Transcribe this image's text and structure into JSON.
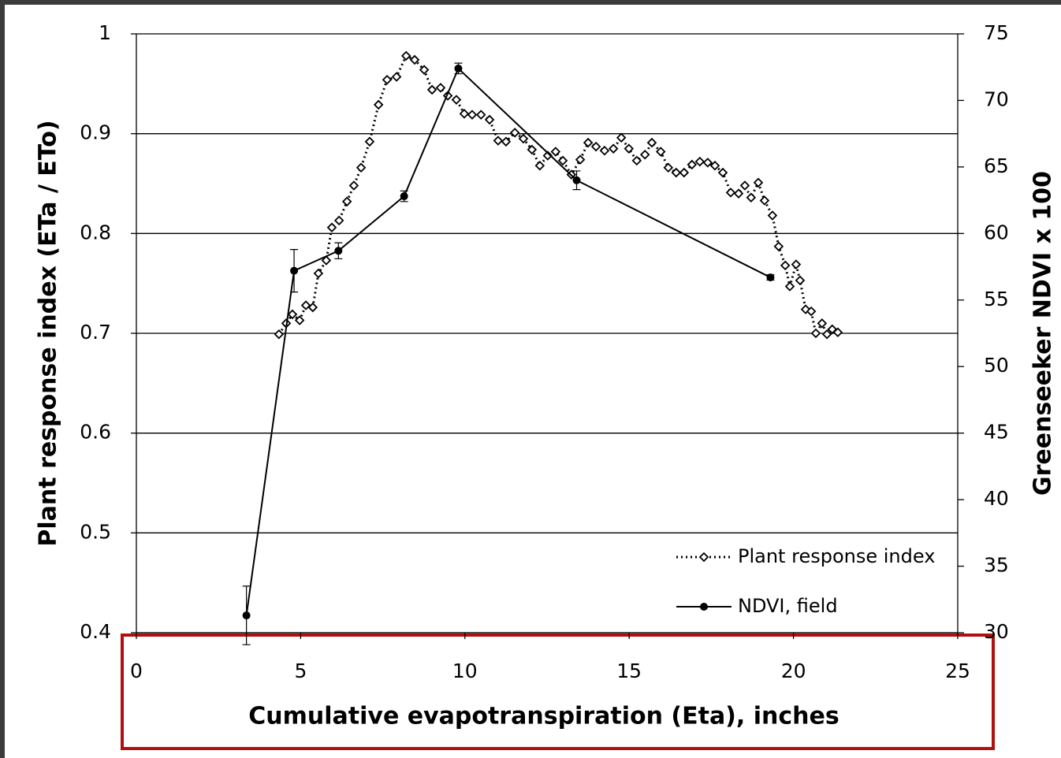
{
  "chart_data": {
    "type": "line",
    "xlabel": "Cumulative evapotranspiration (Eta), inches",
    "ylabel": "Plant response index (ETa / ETo)",
    "y2label": "Greenseeker NDVI x 100",
    "xlim": [
      0,
      25
    ],
    "xticks": [
      0,
      5,
      10,
      15,
      20,
      25
    ],
    "ylim": [
      0.4,
      1
    ],
    "yticks": [
      0.4,
      0.5,
      0.6,
      0.7,
      0.8,
      0.9,
      1
    ],
    "y2lim": [
      30,
      75
    ],
    "y2ticks": [
      30,
      35,
      40,
      45,
      50,
      55,
      60,
      65,
      70,
      75
    ],
    "grid": true,
    "legend": "lower right",
    "series": [
      {
        "name": "Plant response index",
        "color": "#000000",
        "axis": "y",
        "x": [
          4.34,
          4.56,
          4.75,
          4.97,
          5.16,
          5.37,
          5.54,
          5.78,
          5.95,
          6.17,
          6.41,
          6.62,
          6.84,
          7.1,
          7.37,
          7.63,
          7.92,
          8.21,
          8.47,
          8.76,
          9.0,
          9.26,
          9.48,
          9.74,
          9.98,
          10.22,
          10.49,
          10.75,
          11.01,
          11.25,
          11.52,
          11.78,
          12.04,
          12.28,
          12.52,
          12.76,
          12.98,
          13.24,
          13.51,
          13.75,
          13.99,
          14.25,
          14.52,
          14.76,
          14.99,
          15.23,
          15.48,
          15.69,
          15.96,
          16.19,
          16.43,
          16.67,
          16.91,
          17.15,
          17.39,
          17.61,
          17.85,
          18.09,
          18.33,
          18.52,
          18.71,
          18.93,
          19.12,
          19.36,
          19.55,
          19.75,
          19.89,
          20.08,
          20.2,
          20.37,
          20.54,
          20.68,
          20.87,
          21.02,
          21.18,
          21.35
        ],
        "values": [
          0.699,
          0.71,
          0.719,
          0.713,
          0.728,
          0.726,
          0.76,
          0.773,
          0.806,
          0.813,
          0.832,
          0.848,
          0.866,
          0.892,
          0.929,
          0.954,
          0.957,
          0.978,
          0.974,
          0.964,
          0.944,
          0.946,
          0.938,
          0.934,
          0.92,
          0.919,
          0.919,
          0.914,
          0.893,
          0.892,
          0.901,
          0.895,
          0.884,
          0.868,
          0.878,
          0.882,
          0.873,
          0.859,
          0.874,
          0.891,
          0.887,
          0.883,
          0.885,
          0.896,
          0.885,
          0.873,
          0.879,
          0.891,
          0.882,
          0.866,
          0.861,
          0.861,
          0.869,
          0.872,
          0.871,
          0.868,
          0.861,
          0.841,
          0.84,
          0.848,
          0.836,
          0.851,
          0.833,
          0.818,
          0.787,
          0.768,
          0.747,
          0.769,
          0.753,
          0.724,
          0.722,
          0.7,
          0.71,
          0.699,
          0.704,
          0.701
        ]
      },
      {
        "name": "NDVI, field",
        "color": "#000000",
        "axis": "y2",
        "x": [
          3.35,
          4.8,
          6.15,
          8.15,
          9.8,
          13.4,
          19.3
        ],
        "values": [
          31.3,
          57.2,
          58.7,
          62.8,
          72.4,
          64.0,
          56.7
        ],
        "errors": [
          2.2,
          1.6,
          0.6,
          0.4,
          0.4,
          0.7,
          0.2
        ]
      }
    ]
  }
}
